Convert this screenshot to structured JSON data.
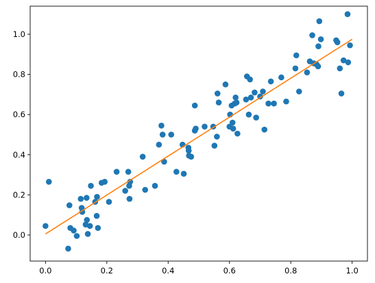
{
  "chart_data": {
    "type": "scatter",
    "title": "",
    "xlabel": "",
    "ylabel": "",
    "xlim": [
      -0.05,
      1.05
    ],
    "ylim": [
      -0.13,
      1.14
    ],
    "xticks": [
      0.0,
      0.2,
      0.4,
      0.6,
      0.8,
      1.0
    ],
    "xtick_labels": [
      "0.0",
      "0.2",
      "0.4",
      "0.6",
      "0.8",
      "1.0"
    ],
    "yticks": [
      0.0,
      0.2,
      0.4,
      0.6,
      0.8,
      1.0
    ],
    "ytick_labels": [
      "0.0",
      "0.2",
      "0.4",
      "0.6",
      "0.8",
      "1.0"
    ],
    "grid": false,
    "legend": "none",
    "series": [
      {
        "kind": "scatter",
        "color": "#1f77b4",
        "points": [
          [
            0.0,
            0.045
          ],
          [
            0.011,
            0.265
          ],
          [
            0.074,
            -0.068
          ],
          [
            0.078,
            0.148
          ],
          [
            0.081,
            0.035
          ],
          [
            0.092,
            0.022
          ],
          [
            0.102,
            -0.005
          ],
          [
            0.115,
            0.18
          ],
          [
            0.118,
            0.135
          ],
          [
            0.12,
            0.115
          ],
          [
            0.131,
            0.052
          ],
          [
            0.134,
            0.185
          ],
          [
            0.135,
            0.075
          ],
          [
            0.138,
            0.005
          ],
          [
            0.145,
            0.045
          ],
          [
            0.148,
            0.245
          ],
          [
            0.162,
            0.165
          ],
          [
            0.167,
            0.095
          ],
          [
            0.168,
            0.19
          ],
          [
            0.171,
            0.035
          ],
          [
            0.183,
            0.26
          ],
          [
            0.193,
            0.265
          ],
          [
            0.207,
            0.165
          ],
          [
            0.232,
            0.315
          ],
          [
            0.26,
            0.22
          ],
          [
            0.27,
            0.315
          ],
          [
            0.273,
            0.245
          ],
          [
            0.276,
            0.265
          ],
          [
            0.274,
            0.18
          ],
          [
            0.317,
            0.39
          ],
          [
            0.325,
            0.225
          ],
          [
            0.357,
            0.245
          ],
          [
            0.37,
            0.45
          ],
          [
            0.378,
            0.545
          ],
          [
            0.382,
            0.5
          ],
          [
            0.387,
            0.365
          ],
          [
            0.41,
            0.5
          ],
          [
            0.427,
            0.315
          ],
          [
            0.447,
            0.45
          ],
          [
            0.451,
            0.305
          ],
          [
            0.466,
            0.435
          ],
          [
            0.467,
            0.42
          ],
          [
            0.468,
            0.395
          ],
          [
            0.475,
            0.39
          ],
          [
            0.487,
            0.645
          ],
          [
            0.487,
            0.52
          ],
          [
            0.49,
            0.53
          ],
          [
            0.519,
            0.54
          ],
          [
            0.547,
            0.54
          ],
          [
            0.551,
            0.445
          ],
          [
            0.561,
            0.705
          ],
          [
            0.559,
            0.49
          ],
          [
            0.565,
            0.66
          ],
          [
            0.587,
            0.75
          ],
          [
            0.6,
            0.54
          ],
          [
            0.602,
            0.6
          ],
          [
            0.607,
            0.645
          ],
          [
            0.61,
            0.56
          ],
          [
            0.612,
            0.53
          ],
          [
            0.617,
            0.655
          ],
          [
            0.62,
            0.685
          ],
          [
            0.623,
            0.66
          ],
          [
            0.626,
            0.505
          ],
          [
            0.654,
            0.675
          ],
          [
            0.657,
            0.79
          ],
          [
            0.663,
            0.6
          ],
          [
            0.667,
            0.775
          ],
          [
            0.67,
            0.685
          ],
          [
            0.682,
            0.71
          ],
          [
            0.687,
            0.585
          ],
          [
            0.7,
            0.69
          ],
          [
            0.709,
            0.715
          ],
          [
            0.714,
            0.525
          ],
          [
            0.727,
            0.655
          ],
          [
            0.735,
            0.765
          ],
          [
            0.745,
            0.655
          ],
          [
            0.769,
            0.785
          ],
          [
            0.785,
            0.665
          ],
          [
            0.815,
            0.83
          ],
          [
            0.818,
            0.895
          ],
          [
            0.827,
            0.715
          ],
          [
            0.853,
            0.81
          ],
          [
            0.862,
            0.865
          ],
          [
            0.87,
            0.995
          ],
          [
            0.875,
            0.855
          ],
          [
            0.884,
            0.85
          ],
          [
            0.889,
            0.84
          ],
          [
            0.89,
            0.94
          ],
          [
            0.893,
            1.065
          ],
          [
            0.898,
            0.975
          ],
          [
            0.948,
            0.97
          ],
          [
            0.952,
            0.96
          ],
          [
            0.96,
            0.83
          ],
          [
            0.965,
            0.705
          ],
          [
            0.972,
            0.87
          ],
          [
            0.985,
            1.1
          ],
          [
            0.987,
            0.86
          ],
          [
            0.993,
            0.945
          ]
        ]
      },
      {
        "kind": "line",
        "color": "#ff7f0e",
        "points": [
          [
            0.0,
            0.005
          ],
          [
            1.0,
            0.975
          ]
        ]
      }
    ]
  }
}
